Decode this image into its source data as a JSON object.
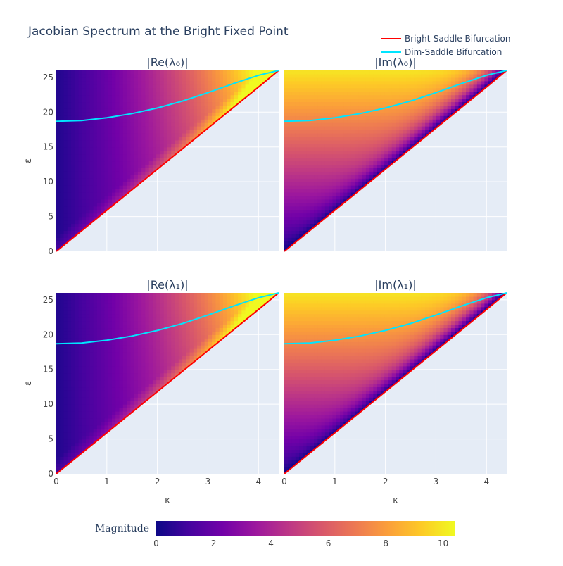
{
  "chart_data": {
    "type": "heatmap",
    "title": "Jacobian Spectrum at the Bright Fixed Point",
    "x_label": "κ",
    "y_label": "ε",
    "xlim": [
      0,
      4.4
    ],
    "ylim": [
      0,
      26
    ],
    "x_ticks": [
      "0",
      "1",
      "2",
      "3",
      "4"
    ],
    "y_ticks": [
      "0",
      "5",
      "10",
      "15",
      "20",
      "25"
    ],
    "panels": [
      {
        "title": "|Re(λ₀)|",
        "quantity": "re",
        "show_x_axis": false,
        "show_y_axis": true
      },
      {
        "title": "|Im(λ₀)|",
        "quantity": "im",
        "show_x_axis": false,
        "show_y_axis": false
      },
      {
        "title": "|Re(λ₁)|",
        "quantity": "re",
        "show_x_axis": true,
        "show_y_axis": true
      },
      {
        "title": "|Im(λ₁)|",
        "quantity": "im",
        "show_x_axis": true,
        "show_y_axis": false
      }
    ],
    "series": [
      {
        "name": "Bright-Saddle Bifurcation",
        "color": "#ff0000",
        "x": [
          0,
          1,
          2,
          3,
          4,
          4.4
        ],
        "y": [
          0,
          5.9,
          11.8,
          17.7,
          23.6,
          26
        ]
      },
      {
        "name": "Dim-Saddle Bifurcation",
        "color": "#00e5ff",
        "x": [
          0,
          0.5,
          1,
          1.5,
          2,
          2.5,
          3,
          3.5,
          4,
          4.4
        ],
        "y": [
          18.7,
          18.8,
          19.2,
          19.8,
          20.6,
          21.6,
          22.8,
          24.1,
          25.3,
          26
        ]
      }
    ],
    "colorbar": {
      "title": "Magnitude",
      "range": [
        0,
        10.4
      ],
      "ticks": [
        "0",
        "2",
        "4",
        "6",
        "8",
        "10"
      ],
      "colorscale": [
        "#0d0887",
        "#46039f",
        "#7201a8",
        "#9c179e",
        "#bd3786",
        "#d8576b",
        "#ed7953",
        "#fb9f3a",
        "#fdca26",
        "#f0f921"
      ]
    },
    "legend_position": "top-right",
    "grid": true
  }
}
